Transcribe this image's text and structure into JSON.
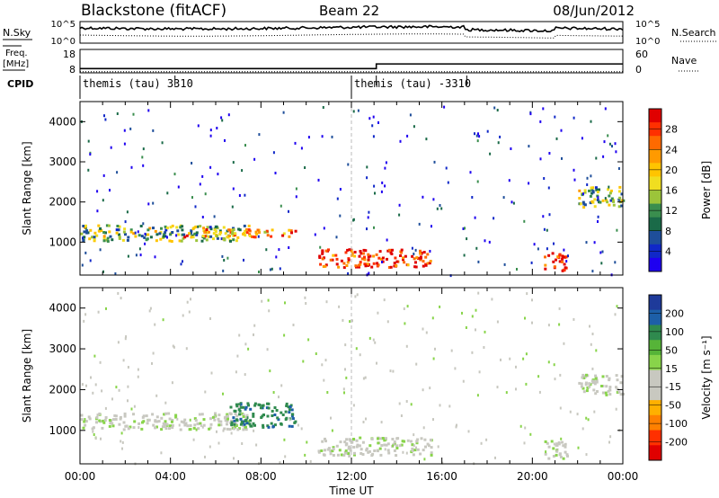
{
  "header": {
    "station": "Blackstone (fitACF)",
    "beam": "Beam 22",
    "date": "08/Jun/2012"
  },
  "noise_panel": {
    "left_label": "N.Sky",
    "right_label": "N.Search",
    "left_ticks": [
      "10^5",
      "10^0"
    ],
    "right_ticks": [
      "10^5",
      "10^0"
    ]
  },
  "freq_panel": {
    "left_label_top": "Freq.",
    "left_label_unit": "[MHz]",
    "left_ticks": [
      "18",
      "8"
    ],
    "right_ticks": [
      "60",
      "0"
    ],
    "right_label": "Nave",
    "freq_steps": [
      {
        "t": 0.0,
        "f": 9.8
      },
      {
        "t": 13.1,
        "f": 11.8
      },
      {
        "t": 24.0,
        "f": 11.8
      }
    ],
    "nave": 3
  },
  "cpid": {
    "label": "CPID",
    "modes": [
      {
        "text": "themis (tau) 3310",
        "start": 0
      },
      {
        "text": "themis (tau) -3310",
        "start": 12
      }
    ]
  },
  "xaxis": {
    "ticks": [
      "00:00",
      "04:00",
      "08:00",
      "12:00",
      "16:00",
      "20:00",
      "00:00"
    ],
    "label": "Time UT"
  },
  "chart_data": [
    {
      "type": "heatmap",
      "title": "Power",
      "ylabel": "Slant Range [km]",
      "yticks": [
        "4000",
        "3000",
        "2000",
        "1000"
      ],
      "xlim": [
        0,
        24
      ],
      "ylim": [
        180,
        4500
      ],
      "colorbar": {
        "label": "Power [dB]",
        "ticks": [
          "28",
          "24",
          "20",
          "16",
          "12",
          "8",
          "4"
        ],
        "colors": [
          "#e00000",
          "#ff3000",
          "#ff6a00",
          "#ff9a00",
          "#ffc400",
          "#f0de20",
          "#9cc43a",
          "#3a8e4e",
          "#1a6a48",
          "#1e4e9a",
          "#1028c8",
          "#1e00f0"
        ]
      },
      "features": [
        {
          "t0": 0.0,
          "t1": 7.5,
          "r0": 1050,
          "r1": 1450,
          "dB": 14
        },
        {
          "t0": 4.5,
          "t1": 9.5,
          "r0": 1150,
          "r1": 1350,
          "dB": 22
        },
        {
          "t0": 10.5,
          "t1": 15.5,
          "r0": 400,
          "r1": 850,
          "dB": 27
        },
        {
          "t0": 20.5,
          "t1": 21.5,
          "r0": 300,
          "r1": 800,
          "dB": 28
        },
        {
          "t0": 22.0,
          "t1": 24.0,
          "r0": 1900,
          "r1": 2400,
          "dB": 14
        }
      ]
    },
    {
      "type": "heatmap",
      "title": "Velocity",
      "ylabel": "Slant Range [km]",
      "yticks": [
        "4000",
        "3000",
        "2000",
        "1000"
      ],
      "xlim": [
        0,
        24
      ],
      "ylim": [
        180,
        4500
      ],
      "colorbar": {
        "label": "Velocity [m s⁻¹]",
        "ticks": [
          "200",
          "100",
          "50",
          "15",
          "-15",
          "-50",
          "-100",
          "-200"
        ],
        "colors": [
          "#1e3a9a",
          "#1d5fa8",
          "#2f8a4e",
          "#56b438",
          "#88d44a",
          "#c8c8c0",
          "#c8c8c0",
          "#ffb000",
          "#ff8000",
          "#ff3000",
          "#e00000"
        ]
      },
      "features": [
        {
          "t0": 0.0,
          "t1": 7.5,
          "r0": 1050,
          "r1": 1450,
          "v": 0
        },
        {
          "t0": 6.5,
          "t1": 9.5,
          "r0": 1100,
          "r1": 1700,
          "v": 60
        },
        {
          "t0": 10.5,
          "t1": 15.5,
          "r0": 400,
          "r1": 850,
          "v": 0
        },
        {
          "t0": 20.5,
          "t1": 21.5,
          "r0": 300,
          "r1": 800,
          "v": 0
        },
        {
          "t0": 22.0,
          "t1": 24.0,
          "r0": 1900,
          "r1": 2400,
          "v": 0
        }
      ]
    }
  ]
}
